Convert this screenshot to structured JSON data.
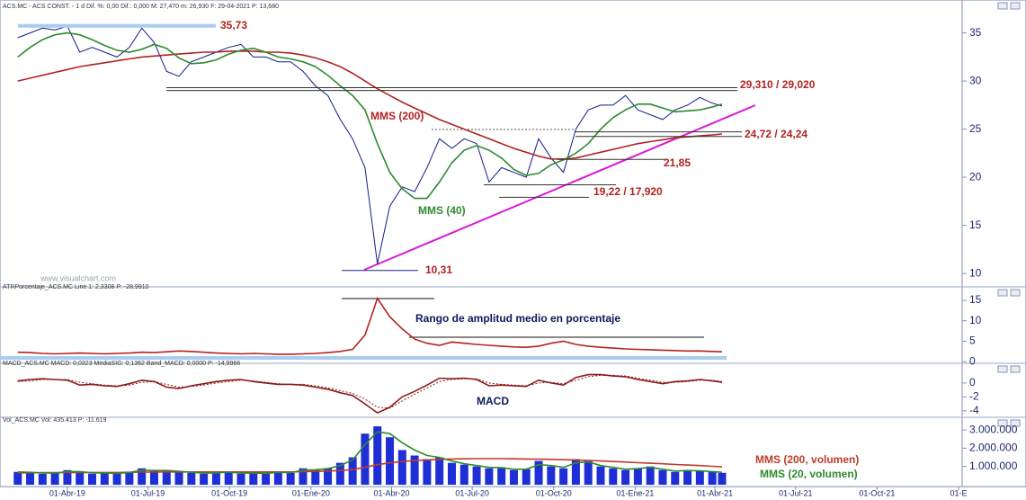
{
  "chart_data": [
    {
      "type": "line",
      "title": "ACS.MC - ACS CONST. - 1 d  Dif. %: 0,00  Dif.: 0,000  M: 27,470  m: 26,930  F: 29-04-2021  P: 13,680",
      "x": [
        "04-Feb-19",
        "18-Feb-19",
        "04-Mar-19",
        "18-Mar-19",
        "01-Abr-19",
        "15-Abr-19",
        "29-Abr-19",
        "13-May-19",
        "27-May-19",
        "10-Jun-19",
        "24-Jun-19",
        "08-Jul-19",
        "22-Jul-19",
        "05-Ago-19",
        "19-Ago-19",
        "02-Sep-19",
        "16-Sep-19",
        "30-Sep-19",
        "14-Oct-19",
        "28-Oct-19",
        "11-Nov-19",
        "25-Nov-19",
        "09-Dic-19",
        "23-Dic-19",
        "06-Ene-20",
        "20-Ene-20",
        "03-Feb-20",
        "17-Feb-20",
        "02-Mar-20",
        "16-Mar-20",
        "30-Mar-20",
        "13-Abr-20",
        "27-Abr-20",
        "11-May-20",
        "25-May-20",
        "08-Jun-20",
        "22-Jun-20",
        "06-Jul-20",
        "20-Jul-20",
        "03-Ago-20",
        "17-Ago-20",
        "31-Ago-20",
        "14-Sep-20",
        "28-Sep-20",
        "12-Oct-20",
        "26-Oct-20",
        "09-Nov-20",
        "23-Nov-20",
        "07-Dic-20",
        "21-Dic-20",
        "04-Ene-21",
        "18-Ene-21",
        "01-Feb-21",
        "15-Feb-21",
        "01-Mar-21",
        "15-Mar-21",
        "29-Mar-21",
        "09-Abr-21"
      ],
      "xlim": [
        "17-Ene-19",
        "03-Ene-22"
      ],
      "ylim": [
        8.7,
        37.3
      ],
      "yticks": [
        10,
        15,
        20,
        25,
        30,
        35
      ],
      "series": [
        {
          "color": "#0f1e8a",
          "values": [
            34.5,
            35,
            35.5,
            35.3,
            35.7,
            33,
            33.5,
            33,
            32.5,
            33.5,
            35.5,
            34,
            31,
            30.5,
            32,
            32.5,
            33,
            33.5,
            33.8,
            32.5,
            32.5,
            32,
            32,
            31,
            29.5,
            28.5,
            26,
            24,
            21,
            11,
            17,
            19,
            18.5,
            21,
            24,
            23,
            24,
            23.5,
            19.5,
            21,
            20.5,
            20,
            24,
            22,
            20.5,
            25,
            27,
            27.5,
            27.5,
            28.5,
            27,
            26.5,
            26,
            27,
            27.5,
            28.3,
            27.7,
            27.4
          ]
        },
        {
          "name": "MMS (200)",
          "color": "#b22222",
          "values": [
            30.0,
            30.3,
            30.6,
            30.9,
            31.2,
            31.5,
            31.7,
            31.9,
            32.1,
            32.3,
            32.5,
            32.6,
            32.7,
            32.8,
            32.9,
            33.0,
            33.0,
            33.1,
            33.1,
            33.1,
            33.0,
            33.0,
            32.9,
            32.7,
            32.4,
            32.0,
            31.5,
            30.8,
            30.0,
            29.2,
            28.5,
            27.8,
            27.2,
            26.6,
            26.0,
            25.5,
            25.0,
            24.5,
            24.0,
            23.5,
            23.0,
            22.6,
            22.2,
            21.9,
            21.9,
            22.0,
            22.3,
            22.6,
            22.9,
            23.2,
            23.5,
            23.7,
            23.9,
            24.1,
            24.2,
            24.3,
            24.4,
            24.5
          ]
        },
        {
          "name": "MMS (40)",
          "color": "#2e8b2e",
          "values": [
            32.5,
            33.5,
            34.3,
            34.8,
            35.0,
            34.8,
            34.3,
            33.7,
            33.2,
            33.0,
            33.3,
            33.8,
            33.4,
            32.4,
            31.8,
            31.9,
            32.2,
            32.8,
            33.2,
            33.4,
            33.0,
            32.5,
            32.3,
            32.0,
            31.5,
            30.6,
            29.5,
            28.5,
            27.0,
            23.5,
            20.5,
            18.8,
            17.8,
            17.8,
            19.5,
            21.5,
            22.8,
            23.3,
            22.8,
            22.0,
            20.8,
            20.2,
            20.4,
            21.3,
            21.8,
            22.5,
            23.5,
            25.0,
            26.2,
            27.0,
            27.6,
            27.6,
            27.2,
            26.8,
            26.9,
            27.0,
            27.3,
            27.6
          ]
        }
      ],
      "levels": [
        {
          "text": "35,73",
          "values": [
            35.73
          ]
        },
        {
          "text": "29,310 / 29,020",
          "values": [
            29.31,
            29.02
          ]
        },
        {
          "text": "24,72 / 24,24",
          "values": [
            24.72,
            24.24
          ]
        },
        {
          "text": "21,85",
          "values": [
            21.85
          ]
        },
        {
          "text": "19,22 / 17,920",
          "values": [
            19.22,
            17.92
          ]
        },
        {
          "text": "10,31",
          "values": [
            10.31
          ]
        }
      ],
      "watermark": "www.visualchart.com"
    },
    {
      "type": "line",
      "title": "ATRPorcentaje_ACS.MC  Line 1: 2,3308  P: -28,9910",
      "x": [
        "04-Feb-19",
        "18-Feb-19",
        "04-Mar-19",
        "18-Mar-19",
        "01-Abr-19",
        "15-Abr-19",
        "29-Abr-19",
        "13-May-19",
        "27-May-19",
        "10-Jun-19",
        "24-Jun-19",
        "08-Jul-19",
        "22-Jul-19",
        "05-Ago-19",
        "19-Ago-19",
        "02-Sep-19",
        "16-Sep-19",
        "30-Sep-19",
        "14-Oct-19",
        "28-Oct-19",
        "11-Nov-19",
        "25-Nov-19",
        "09-Dic-19",
        "23-Dic-19",
        "06-Ene-20",
        "20-Ene-20",
        "03-Feb-20",
        "17-Feb-20",
        "02-Mar-20",
        "16-Mar-20",
        "30-Mar-20",
        "13-Abr-20",
        "27-Abr-20",
        "11-May-20",
        "25-May-20",
        "08-Jun-20",
        "22-Jun-20",
        "06-Jul-20",
        "20-Jul-20",
        "03-Ago-20",
        "17-Ago-20",
        "31-Ago-20",
        "14-Sep-20",
        "28-Sep-20",
        "12-Oct-20",
        "26-Oct-20",
        "09-Nov-20",
        "23-Nov-20",
        "07-Dic-20",
        "21-Dic-20",
        "04-Ene-21",
        "18-Ene-21",
        "01-Feb-21",
        "15-Feb-21",
        "01-Mar-21",
        "15-Mar-21",
        "29-Mar-21",
        "09-Abr-21"
      ],
      "xlim": [
        "17-Ene-19",
        "03-Ene-22"
      ],
      "ylim": [
        -0.2,
        18.1
      ],
      "yticks": [
        0,
        5,
        10,
        15
      ],
      "series": [
        {
          "color": "#b22222",
          "values": [
            2.3,
            2.2,
            2.0,
            1.9,
            2.0,
            2.1,
            2.0,
            1.9,
            2.0,
            2.1,
            2.3,
            2.2,
            2.4,
            2.6,
            2.5,
            2.3,
            2.1,
            2.0,
            1.9,
            2.0,
            1.9,
            1.8,
            1.8,
            1.9,
            2.0,
            2.2,
            2.5,
            3.0,
            6.5,
            15.5,
            11.0,
            8.0,
            5.5,
            4.5,
            4.0,
            4.8,
            4.5,
            4.2,
            4.0,
            3.8,
            3.6,
            3.5,
            3.8,
            4.5,
            5.0,
            4.2,
            3.8,
            3.5,
            3.3,
            3.1,
            3.0,
            2.9,
            2.8,
            2.7,
            2.6,
            2.6,
            2.5,
            2.4
          ]
        }
      ],
      "annotation": "Rango de amplitud medio en porcentaje"
    },
    {
      "type": "line",
      "title": "MACD_ACS.MC  MACD: 0,0323  MediaSIG: 0,1362  Band_MACD: 0,0000  P: -14,9966",
      "x": [
        "04-Feb-19",
        "18-Feb-19",
        "04-Mar-19",
        "18-Mar-19",
        "01-Abr-19",
        "15-Abr-19",
        "29-Abr-19",
        "13-May-19",
        "27-May-19",
        "10-Jun-19",
        "24-Jun-19",
        "08-Jul-19",
        "22-Jul-19",
        "05-Ago-19",
        "19-Ago-19",
        "02-Sep-19",
        "16-Sep-19",
        "30-Sep-19",
        "14-Oct-19",
        "28-Oct-19",
        "11-Nov-19",
        "25-Nov-19",
        "09-Dic-19",
        "23-Dic-19",
        "06-Ene-20",
        "20-Ene-20",
        "03-Feb-20",
        "17-Feb-20",
        "02-Mar-20",
        "16-Mar-20",
        "30-Mar-20",
        "13-Abr-20",
        "27-Abr-20",
        "11-May-20",
        "25-May-20",
        "08-Jun-20",
        "22-Jun-20",
        "06-Jul-20",
        "20-Jul-20",
        "03-Ago-20",
        "17-Ago-20",
        "31-Ago-20",
        "14-Sep-20",
        "28-Sep-20",
        "12-Oct-20",
        "26-Oct-20",
        "09-Nov-20",
        "23-Nov-20",
        "07-Dic-20",
        "21-Dic-20",
        "04-Ene-21",
        "18-Ene-21",
        "01-Feb-21",
        "15-Feb-21",
        "01-Mar-21",
        "15-Mar-21",
        "29-Mar-21",
        "09-Abr-21"
      ],
      "xlim": [
        "17-Ene-19",
        "03-Ene-22"
      ],
      "ylim": [
        -4.8,
        2.7
      ],
      "yticks": [
        0,
        -2,
        -4
      ],
      "series": [
        {
          "color": "#8b1a1a",
          "values": [
            0.3,
            0.5,
            0.6,
            0.5,
            0.4,
            -0.3,
            -0.2,
            -0.4,
            -0.5,
            -0.1,
            0.4,
            0.2,
            -0.6,
            -0.8,
            -0.4,
            -0.1,
            0.2,
            0.4,
            0.5,
            0.2,
            0.0,
            -0.2,
            -0.2,
            -0.3,
            -0.6,
            -0.9,
            -1.4,
            -1.8,
            -3.0,
            -4.3,
            -3.5,
            -2.0,
            -1.2,
            -0.3,
            0.7,
            0.6,
            0.7,
            0.5,
            -0.4,
            -0.3,
            -0.4,
            -0.5,
            0.4,
            0.0,
            -0.3,
            0.8,
            1.2,
            1.2,
            1.0,
            0.9,
            0.5,
            0.2,
            -0.1,
            0.2,
            0.3,
            0.5,
            0.3,
            0.1
          ]
        },
        {
          "color": "#8b1a1a",
          "style": "dotted",
          "values": [
            0.2,
            0.3,
            0.5,
            0.5,
            0.5,
            0.1,
            -0.1,
            -0.3,
            -0.4,
            -0.3,
            0.1,
            0.2,
            -0.2,
            -0.6,
            -0.5,
            -0.3,
            0.0,
            0.2,
            0.4,
            0.3,
            0.1,
            -0.1,
            -0.2,
            -0.2,
            -0.4,
            -0.7,
            -1.1,
            -1.5,
            -2.3,
            -3.5,
            -3.6,
            -2.6,
            -1.6,
            -0.7,
            0.2,
            0.5,
            0.6,
            0.6,
            0.0,
            -0.2,
            -0.3,
            -0.4,
            0.0,
            0.1,
            -0.1,
            0.4,
            0.9,
            1.1,
            1.1,
            1.0,
            0.7,
            0.4,
            0.1,
            0.1,
            0.2,
            0.4,
            0.4,
            0.2
          ]
        }
      ],
      "annotation": "MACD"
    },
    {
      "type": "bar",
      "title": "Vol_ACS.MC  Vol: 435.413  P: -11.619",
      "x": [
        "04-Feb-19",
        "18-Feb-19",
        "04-Mar-19",
        "18-Mar-19",
        "01-Abr-19",
        "15-Abr-19",
        "29-Abr-19",
        "13-May-19",
        "27-May-19",
        "10-Jun-19",
        "24-Jun-19",
        "08-Jul-19",
        "22-Jul-19",
        "05-Ago-19",
        "19-Ago-19",
        "02-Sep-19",
        "16-Sep-19",
        "30-Sep-19",
        "14-Oct-19",
        "28-Oct-19",
        "11-Nov-19",
        "25-Nov-19",
        "09-Dic-19",
        "23-Dic-19",
        "06-Ene-20",
        "20-Ene-20",
        "03-Feb-20",
        "17-Feb-20",
        "02-Mar-20",
        "16-Mar-20",
        "30-Mar-20",
        "13-Abr-20",
        "27-Abr-20",
        "11-May-20",
        "25-May-20",
        "08-Jun-20",
        "22-Jun-20",
        "06-Jul-20",
        "20-Jul-20",
        "03-Ago-20",
        "17-Ago-20",
        "31-Ago-20",
        "14-Sep-20",
        "28-Sep-20",
        "12-Oct-20",
        "26-Oct-20",
        "09-Nov-20",
        "23-Nov-20",
        "07-Dic-20",
        "21-Dic-20",
        "04-Ene-21",
        "18-Ene-21",
        "01-Feb-21",
        "15-Feb-21",
        "01-Mar-21",
        "15-Mar-21",
        "29-Mar-21",
        "09-Abr-21"
      ],
      "xlim": [
        "17-Ene-19",
        "03-Ene-22"
      ],
      "xticks": [
        "01-Abr-19",
        "01-Jul-19",
        "01-Oct-19",
        "01-Ene-20",
        "01-Abr-20",
        "01-Jul-20",
        "01-Oct-20",
        "01-Ene-21",
        "01-Abr-21",
        "01-Jul-21",
        "01-Oct-21",
        {
          "value": "01-Ene-22",
          "label": "01-E"
        }
      ],
      "ylim": [
        0,
        3500000
      ],
      "yticks": [
        {
          "value": 1000000,
          "label": "1.000.000"
        },
        {
          "value": 2000000,
          "label": "2.000.000"
        },
        {
          "value": 3000000,
          "label": "3.000.000"
        }
      ],
      "color": "#1f2fd6",
      "values": [
        700000,
        650000,
        600000,
        650000,
        800000,
        700000,
        600000,
        650000,
        600000,
        700000,
        900000,
        750000,
        800000,
        700000,
        650000,
        600000,
        650000,
        700000,
        600000,
        650000,
        600000,
        700000,
        650000,
        900000,
        800000,
        900000,
        1200000,
        1500000,
        2800000,
        3200000,
        2600000,
        1900000,
        1600000,
        1400000,
        1500000,
        1200000,
        1100000,
        1000000,
        900000,
        950000,
        800000,
        850000,
        1300000,
        1000000,
        900000,
        1400000,
        1300000,
        1000000,
        900000,
        800000,
        900000,
        1000000,
        800000,
        700000,
        800000,
        750000,
        700000,
        650000
      ],
      "series": [
        {
          "name": "MMS (200, volumen)",
          "color": "#c0392b",
          "values": [
            650000,
            650000,
            660000,
            660000,
            670000,
            670000,
            670000,
            670000,
            670000,
            680000,
            690000,
            690000,
            700000,
            700000,
            700000,
            700000,
            700000,
            700000,
            700000,
            700000,
            700000,
            700000,
            700000,
            720000,
            730000,
            750000,
            780000,
            830000,
            950000,
            1100000,
            1200000,
            1270000,
            1320000,
            1360000,
            1390000,
            1410000,
            1420000,
            1430000,
            1430000,
            1430000,
            1420000,
            1410000,
            1400000,
            1390000,
            1370000,
            1350000,
            1330000,
            1300000,
            1270000,
            1240000,
            1210000,
            1180000,
            1150000,
            1110000,
            1080000,
            1050000,
            1010000,
            980000
          ]
        },
        {
          "name": "MMS (20, volumen)",
          "color": "#2e8b2e",
          "values": [
            700000,
            680000,
            640000,
            640000,
            720000,
            720000,
            650000,
            640000,
            620000,
            670000,
            800000,
            780000,
            780000,
            740000,
            680000,
            630000,
            650000,
            690000,
            630000,
            640000,
            620000,
            680000,
            660000,
            800000,
            820000,
            880000,
            1050000,
            1350000,
            2200000,
            2900000,
            2800000,
            2300000,
            1900000,
            1600000,
            1500000,
            1300000,
            1150000,
            1050000,
            950000,
            930000,
            850000,
            850000,
            1100000,
            1050000,
            950000,
            1200000,
            1250000,
            1050000,
            950000,
            850000,
            880000,
            950000,
            850000,
            750000,
            780000,
            760000,
            720000,
            680000
          ]
        }
      ]
    }
  ]
}
